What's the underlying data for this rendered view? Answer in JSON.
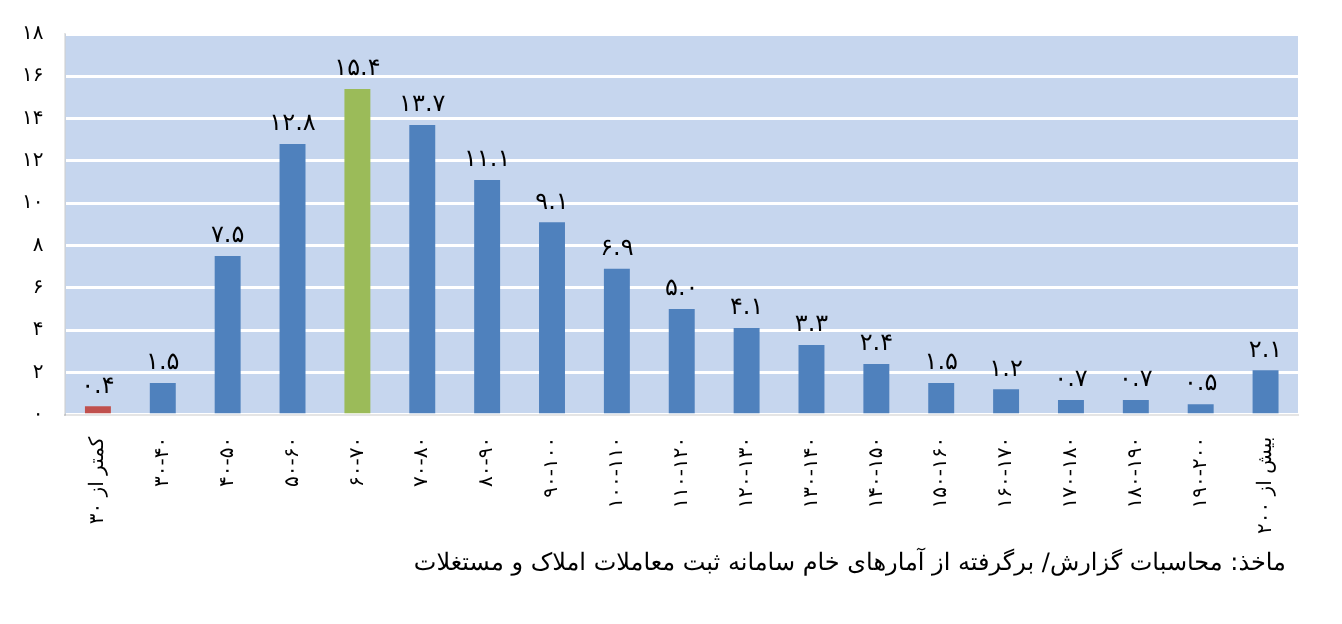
{
  "chart_data": {
    "type": "bar",
    "categories": [
      "کمتر از ۳۰",
      "۳۰-۴۰",
      "۴۰-۵۰",
      "۵۰-۶۰",
      "۶۰-۷۰",
      "۷۰-۸۰",
      "۸۰-۹۰",
      "۹۰-۱۰۰",
      "۱۰۰-۱۱۰",
      "۱۱۰-۱۲۰",
      "۱۲۰-۱۳۰",
      "۱۳۰-۱۴۰",
      "۱۴۰-۱۵۰",
      "۱۵۰-۱۶۰",
      "۱۶۰-۱۷۰",
      "۱۷۰-۱۸۰",
      "۱۸۰-۱۹۰",
      "۱۹۰-۲۰۰",
      "بیش از ۲۰۰"
    ],
    "values": [
      0.4,
      1.5,
      7.5,
      12.8,
      15.4,
      13.7,
      11.1,
      9.1,
      6.9,
      5.0,
      4.1,
      3.3,
      2.4,
      1.5,
      1.2,
      0.7,
      0.7,
      0.5,
      2.1
    ],
    "value_labels": [
      "۰.۴",
      "۱.۵",
      "۷.۵",
      "۱۲.۸",
      "۱۵.۴",
      "۱۳.۷",
      "۱۱.۱",
      "۹.۱",
      "۶.۹",
      "۵.۰",
      "۴.۱",
      "۳.۳",
      "۲.۴",
      "۱.۵",
      "۱.۲",
      "۰.۷",
      "۰.۷",
      "۰.۵",
      "۲.۱"
    ],
    "colors": [
      "#c0504d",
      "#4f81bd",
      "#4f81bd",
      "#4f81bd",
      "#9bbb59",
      "#4f81bd",
      "#4f81bd",
      "#4f81bd",
      "#4f81bd",
      "#4f81bd",
      "#4f81bd",
      "#4f81bd",
      "#4f81bd",
      "#4f81bd",
      "#4f81bd",
      "#4f81bd",
      "#4f81bd",
      "#4f81bd",
      "#4f81bd"
    ],
    "ylim": [
      0,
      18
    ],
    "yticks": [
      {
        "value": 0,
        "label": "۰"
      },
      {
        "value": 2,
        "label": "۲"
      },
      {
        "value": 4,
        "label": "۴"
      },
      {
        "value": 6,
        "label": "۶"
      },
      {
        "value": 8,
        "label": "۸"
      },
      {
        "value": 10,
        "label": "۱۰"
      },
      {
        "value": 12,
        "label": "۱۲"
      },
      {
        "value": 14,
        "label": "۱۴"
      },
      {
        "value": 16,
        "label": "۱۶"
      },
      {
        "value": 18,
        "label": "۱۸"
      }
    ],
    "grid": "y",
    "annotations": [
      "ماخذ: محاسبات گزارش/ برگرفته از آمارهای خام سامانه ثبت معاملات املاک و مستغلات"
    ]
  }
}
